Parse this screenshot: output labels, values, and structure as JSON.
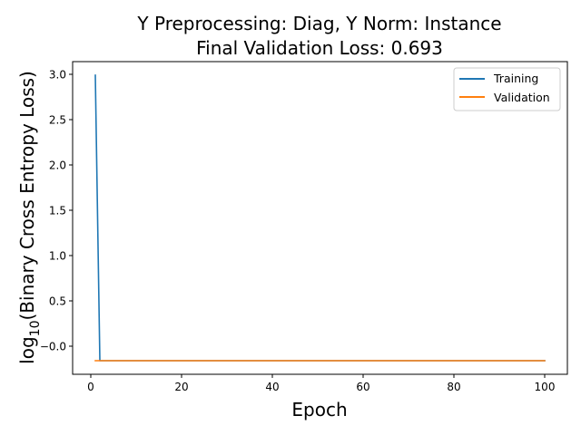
{
  "chart_data": {
    "type": "line",
    "title_line1": "Y Preprocessing: Diag, Y Norm: Instance",
    "title_line2": "Final Validation Loss: 0.693",
    "xlabel": "Epoch",
    "ylabel_main": "log",
    "ylabel_sub": "10",
    "ylabel_rest": "(Binary Cross Entropy Loss)",
    "xlim": [
      -4,
      105
    ],
    "ylim": [
      -0.31,
      3.14
    ],
    "xticks": [
      0,
      20,
      40,
      60,
      80,
      100
    ],
    "xtick_labels": [
      "0",
      "20",
      "40",
      "60",
      "80",
      "100"
    ],
    "yticks": [
      -0.0,
      0.5,
      1.0,
      1.5,
      2.0,
      2.5,
      3.0
    ],
    "ytick_labels": [
      "−0.0",
      "0.5",
      "1.0",
      "1.5",
      "2.0",
      "2.5",
      "3.0"
    ],
    "grid": false,
    "legend_position": "top-right",
    "series": [
      {
        "name": "Training",
        "color": "#1f77b4",
        "x": [
          1,
          2,
          3,
          100
        ],
        "y": [
          2.99,
          -0.16,
          -0.16,
          -0.16
        ]
      },
      {
        "name": "Validation",
        "color": "#ff7f0e",
        "x": [
          1,
          100
        ],
        "y": [
          -0.16,
          -0.16
        ]
      }
    ]
  }
}
